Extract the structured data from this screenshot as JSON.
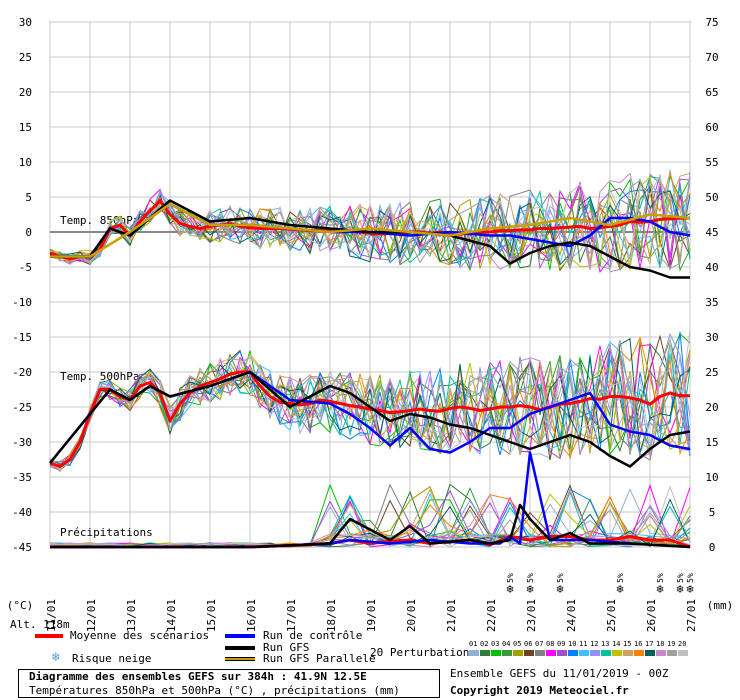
{
  "chart_data": {
    "type": "line",
    "title": "Diagramme des ensembles GEFS sur 384h : 41.9N 12.5E",
    "subtitle": "Températures 850hPa et 500hPa (°C) , précipitations (mm)",
    "left_axis": {
      "label": "(°C)",
      "ticks": [
        30,
        25,
        20,
        15,
        10,
        5,
        0,
        -5,
        -10,
        -15,
        -20,
        -25,
        -30,
        -35,
        -40,
        -45
      ]
    },
    "right_axis": {
      "label": "(mm)",
      "ticks": [
        75,
        70,
        65,
        60,
        55,
        50,
        45,
        40,
        35,
        30,
        25,
        20,
        15,
        10,
        5,
        0
      ]
    },
    "x_ticks": [
      "11/01",
      "12/01",
      "13/01",
      "14/01",
      "15/01",
      "16/01",
      "17/01",
      "18/01",
      "19/01",
      "20/01",
      "21/01",
      "22/01",
      "23/01",
      "24/01",
      "25/01",
      "26/01",
      "27/01"
    ],
    "x_range_hours": [
      0,
      384
    ],
    "ylim": [
      -45,
      30
    ],
    "grid": true,
    "panel_labels": {
      "t850": "Temp. 850hPa",
      "t500": "Temp. 500hPa",
      "precip": "Précipitations"
    },
    "altitude": "Alt. 118m",
    "snow_risk": [
      {
        "hour": 306,
        "label": "5%"
      },
      {
        "hour": 342,
        "label": "5%"
      },
      {
        "hour": 366,
        "label": "5%"
      },
      {
        "hour": 378,
        "label": "5%"
      },
      {
        "hour": 384,
        "label": "5%"
      },
      {
        "hour": 276,
        "label": "5%"
      },
      {
        "hour": 288,
        "label": "5%"
      }
    ],
    "series": [
      {
        "name": "Moyenne des scénarios",
        "color": "#ff0000",
        "group": "t850",
        "x": [
          0,
          6,
          12,
          18,
          24,
          30,
          36,
          42,
          48,
          54,
          60,
          66,
          72,
          78,
          84,
          90,
          96,
          102,
          108,
          114,
          120,
          126,
          132,
          138,
          144,
          150,
          156,
          162,
          168,
          174,
          180,
          186,
          192,
          198,
          204,
          210,
          216,
          222,
          228,
          234,
          240,
          246,
          252,
          258,
          264,
          270,
          276,
          282,
          288,
          294,
          300,
          306,
          312,
          318,
          324,
          330,
          336,
          342,
          348,
          354,
          360,
          366,
          372,
          378,
          384
        ],
        "y": [
          -3,
          -3.5,
          -3.8,
          -3.5,
          -3.6,
          -2.5,
          0.5,
          1,
          -0.5,
          1.5,
          3,
          4.5,
          2.5,
          1.2,
          0.8,
          0.5,
          0.8,
          1,
          1.2,
          0.8,
          0.6,
          0.5,
          0.5,
          0.5,
          0.4,
          0.3,
          0.2,
          0.2,
          0.2,
          0,
          0.1,
          0,
          -0.2,
          -0.3,
          -0.2,
          -0.3,
          0,
          0,
          -0.2,
          0,
          -0.2,
          -0.3,
          -0.2,
          0,
          0,
          0.2,
          0.2,
          0.3,
          0.3,
          0.5,
          0.5,
          0.6,
          0.7,
          0.8,
          0.5,
          0.6,
          0.8,
          1,
          1.5,
          1.4,
          1.5,
          1.8,
          1.9,
          2,
          2
        ]
      },
      {
        "name": "Moyenne des scénarios",
        "color": "#ff0000",
        "group": "t500",
        "x": [
          0,
          6,
          12,
          18,
          24,
          30,
          36,
          42,
          48,
          54,
          60,
          66,
          72,
          78,
          84,
          90,
          96,
          102,
          108,
          114,
          120,
          126,
          132,
          138,
          144,
          150,
          156,
          162,
          168,
          174,
          180,
          186,
          192,
          198,
          204,
          210,
          216,
          222,
          228,
          234,
          240,
          246,
          252,
          258,
          264,
          270,
          276,
          282,
          288,
          294,
          300,
          306,
          312,
          318,
          324,
          330,
          336,
          342,
          348,
          354,
          360,
          366,
          372,
          378,
          384
        ],
        "y": [
          -33,
          -33.5,
          -32.5,
          -30,
          -26,
          -22.5,
          -22.5,
          -23.5,
          -24,
          -22,
          -21.5,
          -23,
          -27,
          -24.5,
          -23,
          -22,
          -21.5,
          -21,
          -20.3,
          -20,
          -20,
          -22,
          -23.5,
          -24.3,
          -24.5,
          -24.7,
          -24.5,
          -24,
          -24.2,
          -24.5,
          -24.8,
          -25,
          -25.3,
          -25.5,
          -25.8,
          -25.7,
          -25.5,
          -25.3,
          -25.5,
          -25.6,
          -25.2,
          -25,
          -25.2,
          -25.5,
          -25.3,
          -25,
          -25,
          -24.8,
          -25,
          -25.4,
          -25,
          -24.6,
          -24.5,
          -24.2,
          -23.8,
          -23.9,
          -23.5,
          -23.5,
          -23.7,
          -24,
          -24.6,
          -23.5,
          -23,
          -23.4,
          -23.4
        ]
      },
      {
        "name": "Moyenne des scénarios",
        "color": "#ff0000",
        "group": "precip",
        "x": [
          0,
          24,
          48,
          60,
          72,
          96,
          120,
          144,
          168,
          180,
          192,
          204,
          216,
          228,
          240,
          252,
          264,
          276,
          288,
          300,
          312,
          324,
          336,
          348,
          360,
          372,
          384
        ],
        "y": [
          0,
          0,
          0,
          0,
          0,
          0,
          0,
          0.2,
          0.5,
          1,
          0.5,
          0.8,
          1,
          0.5,
          0.8,
          1,
          0.3,
          1.5,
          1,
          1.5,
          1.5,
          1,
          1,
          1.5,
          1,
          1,
          0
        ]
      },
      {
        "name": "Run de contrôle",
        "color": "#0000ff",
        "group": "t850",
        "x": [
          0,
          24,
          36,
          48,
          60,
          72,
          96,
          120,
          144,
          168,
          192,
          216,
          240,
          264,
          276,
          288,
          300,
          312,
          324,
          336,
          348,
          360,
          372,
          384
        ],
        "y": [
          -3.5,
          -3.5,
          0.5,
          -0.5,
          2,
          4,
          1,
          1,
          0.5,
          0,
          0,
          -0.5,
          0,
          -0.5,
          -0.5,
          -1,
          -1.5,
          -2,
          -0.5,
          2,
          2,
          1.5,
          0,
          -0.5
        ]
      },
      {
        "name": "Run de contrôle",
        "color": "#0000ff",
        "group": "t500",
        "x": [
          0,
          24,
          36,
          48,
          60,
          72,
          96,
          120,
          144,
          168,
          180,
          192,
          204,
          216,
          228,
          240,
          252,
          264,
          276,
          288,
          300,
          312,
          324,
          336,
          348,
          360,
          372,
          384
        ],
        "y": [
          -33,
          -26,
          -22.5,
          -24,
          -22,
          -23.5,
          -22,
          -20,
          -24,
          -24.5,
          -26,
          -28,
          -30.5,
          -28,
          -31,
          -31.5,
          -30,
          -28,
          -28,
          -26,
          -25,
          -24,
          -23,
          -27.5,
          -28.5,
          -29,
          -30.5,
          -31
        ]
      },
      {
        "name": "Run de contrôle",
        "color": "#0000ff",
        "group": "precip",
        "x": [
          0,
          120,
          168,
          180,
          204,
          228,
          252,
          270,
          276,
          282,
          288,
          300,
          324,
          348,
          384
        ],
        "y": [
          0,
          0,
          0.5,
          1,
          0.5,
          1,
          0.5,
          0.5,
          1.5,
          0.5,
          13.5,
          1,
          1,
          0.5,
          0
        ]
      },
      {
        "name": "Run GFS",
        "color": "#000000",
        "group": "t850",
        "x": [
          0,
          24,
          36,
          48,
          60,
          72,
          96,
          120,
          144,
          168,
          192,
          216,
          240,
          264,
          276,
          288,
          300,
          312,
          324,
          336,
          348,
          360,
          372,
          384
        ],
        "y": [
          -3.5,
          -3.5,
          0.5,
          -0.5,
          2,
          4.5,
          1.5,
          2,
          1,
          0.5,
          0,
          0,
          -0.5,
          -2,
          -4.5,
          -3,
          -2,
          -1.5,
          -2,
          -3.5,
          -5,
          -5.5,
          -6.5,
          -6.5
        ]
      },
      {
        "name": "Run GFS",
        "color": "#000000",
        "group": "t500",
        "x": [
          0,
          24,
          36,
          48,
          60,
          72,
          96,
          120,
          144,
          168,
          180,
          192,
          204,
          216,
          228,
          240,
          252,
          264,
          276,
          288,
          300,
          312,
          324,
          336,
          348,
          360,
          372,
          384
        ],
        "y": [
          -33,
          -26,
          -22.5,
          -24,
          -22,
          -23.5,
          -22,
          -20,
          -25,
          -22,
          -23,
          -25,
          -27,
          -26,
          -26.5,
          -27.5,
          -28,
          -29,
          -30,
          -31,
          -30,
          -29,
          -30,
          -32,
          -33.5,
          -31,
          -29,
          -28.5
        ]
      },
      {
        "name": "Run GFS",
        "color": "#000000",
        "group": "precip",
        "x": [
          0,
          120,
          168,
          180,
          204,
          216,
          228,
          252,
          264,
          276,
          282,
          288,
          300,
          312,
          324,
          348,
          384
        ],
        "y": [
          0,
          0,
          0.5,
          4,
          1,
          3,
          0.5,
          1,
          0.5,
          1,
          6,
          4,
          1,
          2,
          0.5,
          0.5,
          0
        ]
      },
      {
        "name": "Run GFS Parallele",
        "color": "#c8a000",
        "group": "t850",
        "x": [
          0,
          24,
          48,
          72,
          96,
          120,
          144,
          168,
          192,
          216,
          240,
          264,
          288,
          312,
          336,
          360,
          384
        ],
        "y": [
          -3.5,
          -3.5,
          0,
          4,
          1,
          1,
          0.5,
          0,
          0.5,
          0,
          -0.5,
          0.5,
          1,
          2,
          1,
          2.5,
          2
        ]
      }
    ],
    "perturbation_colors": [
      "#8cb4d8",
      "#2e7d32",
      "#00c000",
      "#3a9a3a",
      "#a0a000",
      "#6b4423",
      "#808080",
      "#ff00ff",
      "#a050c8",
      "#0080ff",
      "#40c0ff",
      "#9090ff",
      "#00c0a0",
      "#c0c000",
      "#d0a060",
      "#ff8000",
      "#006060",
      "#cc88cc",
      "#a0a0a0",
      "#c0c0c0"
    ]
  },
  "legend": {
    "mean": "Moyenne des scénarios",
    "control": "Run de contrôle",
    "gfs": "Run GFS",
    "gfs_parallel": "Run GFS Parallele",
    "snow": "Risque neige",
    "perturbations": "20 Perturbations",
    "pert_numbers": [
      "01",
      "02",
      "03",
      "04",
      "05",
      "06",
      "07",
      "08",
      "09",
      "10",
      "11",
      "12",
      "13",
      "14",
      "15",
      "16",
      "17",
      "18",
      "19",
      "20"
    ]
  },
  "footer": {
    "run": "Ensemble GEFS du 11/01/2019 - 00Z",
    "copyright": "Copyright 2019 Meteociel.fr"
  }
}
